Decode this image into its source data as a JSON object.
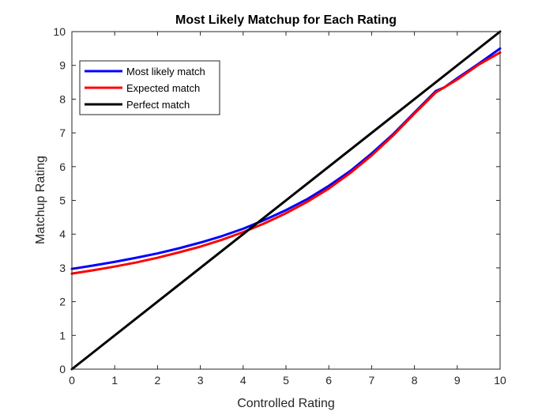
{
  "chart_data": {
    "type": "line",
    "title": "Most Likely Matchup for Each Rating",
    "xlabel": "Controlled Rating",
    "ylabel": "Matchup Rating",
    "xlim": [
      0,
      10
    ],
    "ylim": [
      0,
      10
    ],
    "xticks": [
      0,
      1,
      2,
      3,
      4,
      5,
      6,
      7,
      8,
      9,
      10
    ],
    "yticks": [
      0,
      1,
      2,
      3,
      4,
      5,
      6,
      7,
      8,
      9,
      10
    ],
    "grid": false,
    "legend_position": "top-left",
    "series": [
      {
        "name": "Most likely match",
        "color": "#0000ff",
        "x": [
          0,
          0.5,
          1,
          1.5,
          2,
          2.5,
          3,
          3.5,
          4,
          4.5,
          5,
          5.5,
          6,
          6.5,
          7,
          7.5,
          8,
          8.5,
          8.7,
          9,
          9.5,
          10
        ],
        "y": [
          2.97,
          3.07,
          3.18,
          3.3,
          3.43,
          3.58,
          3.75,
          3.94,
          4.16,
          4.42,
          4.71,
          5.04,
          5.43,
          5.87,
          6.39,
          6.96,
          7.6,
          8.24,
          8.35,
          8.62,
          9.05,
          9.5
        ]
      },
      {
        "name": "Expected match",
        "color": "#ff0000",
        "x": [
          0,
          0.5,
          1,
          1.5,
          2,
          2.5,
          3,
          3.5,
          4,
          4.5,
          5,
          5.5,
          6,
          6.5,
          7,
          7.5,
          8,
          8.5,
          8.7,
          9,
          9.5,
          10
        ],
        "y": [
          2.83,
          2.93,
          3.04,
          3.16,
          3.3,
          3.46,
          3.63,
          3.83,
          4.06,
          4.32,
          4.62,
          4.96,
          5.35,
          5.81,
          6.33,
          6.92,
          7.57,
          8.2,
          8.35,
          8.58,
          9.02,
          9.38
        ]
      },
      {
        "name": "Perfect match",
        "color": "#000000",
        "x": [
          0,
          10
        ],
        "y": [
          0,
          10
        ]
      }
    ]
  }
}
